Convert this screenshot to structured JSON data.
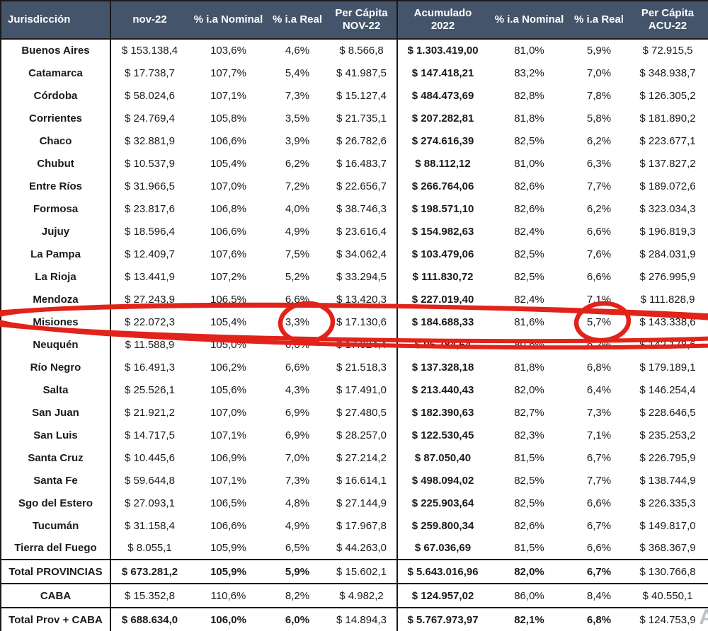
{
  "table": {
    "headers": [
      {
        "lines": [
          "Jurisdicción"
        ]
      },
      {
        "lines": [
          "nov-22"
        ]
      },
      {
        "lines": [
          "% i.a Nominal"
        ]
      },
      {
        "lines": [
          "% i.a Real"
        ]
      },
      {
        "lines": [
          "Per Cápita",
          "NOV-22"
        ]
      },
      {
        "lines": [
          "Acumulado",
          "2022"
        ]
      },
      {
        "lines": [
          "% i.a Nominal"
        ]
      },
      {
        "lines": [
          "% i.a Real"
        ]
      },
      {
        "lines": [
          "Per Cápita",
          "ACU-22"
        ]
      }
    ],
    "rows": [
      {
        "cells": [
          "Buenos Aires",
          "$ 153.138,4",
          "103,6%",
          "4,6%",
          "$ 8.566,8",
          "$ 1.303.419,00",
          "81,0%",
          "5,9%",
          "$ 72.915,5"
        ]
      },
      {
        "cells": [
          "Catamarca",
          "$ 17.738,7",
          "107,7%",
          "5,4%",
          "$ 41.987,5",
          "$ 147.418,21",
          "83,2%",
          "7,0%",
          "$ 348.938,7"
        ]
      },
      {
        "cells": [
          "Córdoba",
          "$ 58.024,6",
          "107,1%",
          "7,3%",
          "$ 15.127,4",
          "$ 484.473,69",
          "82,8%",
          "7,8%",
          "$ 126.305,2"
        ]
      },
      {
        "cells": [
          "Corrientes",
          "$ 24.769,4",
          "105,8%",
          "3,5%",
          "$ 21.735,1",
          "$ 207.282,81",
          "81,8%",
          "5,8%",
          "$ 181.890,2"
        ]
      },
      {
        "cells": [
          "Chaco",
          "$ 32.881,9",
          "106,6%",
          "3,9%",
          "$ 26.782,6",
          "$ 274.616,39",
          "82,5%",
          "6,2%",
          "$ 223.677,1"
        ]
      },
      {
        "cells": [
          "Chubut",
          "$ 10.537,9",
          "105,4%",
          "6,2%",
          "$ 16.483,7",
          "$ 88.112,12",
          "81,0%",
          "6,3%",
          "$ 137.827,2"
        ]
      },
      {
        "cells": [
          "Entre Ríos",
          "$ 31.966,5",
          "107,0%",
          "7,2%",
          "$ 22.656,7",
          "$ 266.764,06",
          "82,6%",
          "7,7%",
          "$ 189.072,6"
        ]
      },
      {
        "cells": [
          "Formosa",
          "$ 23.817,6",
          "106,8%",
          "4,0%",
          "$ 38.746,3",
          "$ 198.571,10",
          "82,6%",
          "6,2%",
          "$ 323.034,3"
        ]
      },
      {
        "cells": [
          "Jujuy",
          "$ 18.596,4",
          "106,6%",
          "4,9%",
          "$ 23.616,4",
          "$ 154.982,63",
          "82,4%",
          "6,6%",
          "$ 196.819,3"
        ]
      },
      {
        "cells": [
          "La Pampa",
          "$ 12.409,7",
          "107,6%",
          "7,5%",
          "$ 34.062,4",
          "$ 103.479,06",
          "82,5%",
          "7,6%",
          "$ 284.031,9"
        ]
      },
      {
        "cells": [
          "La Rioja",
          "$ 13.441,9",
          "107,2%",
          "5,2%",
          "$ 33.294,5",
          "$ 111.830,72",
          "82,5%",
          "6,6%",
          "$ 276.995,9"
        ]
      },
      {
        "cells": [
          "Mendoza",
          "$ 27.243,9",
          "106,5%",
          "6,6%",
          "$ 13.420,3",
          "$ 227.019,40",
          "82,4%",
          "7,1%",
          "$ 111.828,9"
        ]
      },
      {
        "cells": [
          "Misiones",
          "$ 22.072,3",
          "105,4%",
          "3,3%",
          "$ 17.130,6",
          "$ 184.688,33",
          "81,6%",
          "5,7%",
          "$ 143.338,6"
        ]
      },
      {
        "cells": [
          "Neuquén",
          "$ 11.588,9",
          "105,0%",
          "6,0%",
          "$ 17.024,4",
          "$ 96.784,64",
          "80,6%",
          "6,2%",
          "$ 142.178,6"
        ]
      },
      {
        "cells": [
          "Río Negro",
          "$ 16.491,3",
          "106,2%",
          "6,6%",
          "$ 21.518,3",
          "$ 137.328,18",
          "81,8%",
          "6,8%",
          "$ 179.189,1"
        ]
      },
      {
        "cells": [
          "Salta",
          "$ 25.526,1",
          "105,6%",
          "4,3%",
          "$ 17.491,0",
          "$ 213.440,43",
          "82,0%",
          "6,4%",
          "$ 146.254,4"
        ]
      },
      {
        "cells": [
          "San Juan",
          "$ 21.921,2",
          "107,0%",
          "6,9%",
          "$ 27.480,5",
          "$ 182.390,63",
          "82,7%",
          "7,3%",
          "$ 228.646,5"
        ]
      },
      {
        "cells": [
          "San Luis",
          "$ 14.717,5",
          "107,1%",
          "6,9%",
          "$ 28.257,0",
          "$ 122.530,45",
          "82,3%",
          "7,1%",
          "$ 235.253,2"
        ]
      },
      {
        "cells": [
          "Santa Cruz",
          "$ 10.445,6",
          "106,9%",
          "7,0%",
          "$ 27.214,2",
          "$ 87.050,40",
          "81,5%",
          "6,7%",
          "$ 226.795,9"
        ]
      },
      {
        "cells": [
          "Santa Fe",
          "$ 59.644,8",
          "107,1%",
          "7,3%",
          "$ 16.614,1",
          "$ 498.094,02",
          "82,5%",
          "7,7%",
          "$ 138.744,9"
        ]
      },
      {
        "cells": [
          "Sgo del Estero",
          "$ 27.093,1",
          "106,5%",
          "4,8%",
          "$ 27.144,9",
          "$ 225.903,64",
          "82,5%",
          "6,6%",
          "$ 226.335,3"
        ]
      },
      {
        "cells": [
          "Tucumán",
          "$ 31.158,4",
          "106,6%",
          "4,9%",
          "$ 17.967,8",
          "$ 259.800,34",
          "82,6%",
          "6,7%",
          "$ 149.817,0"
        ]
      },
      {
        "cells": [
          "Tierra del Fuego",
          "$ 8.055,1",
          "105,9%",
          "6,5%",
          "$ 44.263,0",
          "$ 67.036,69",
          "81,5%",
          "6,6%",
          "$ 368.367,9"
        ]
      }
    ],
    "total_rows": [
      {
        "kind": "total-strong",
        "cells": [
          "Total PROVINCIAS",
          "$ 673.281,2",
          "105,9%",
          "5,9%",
          "$ 15.602,1",
          "$ 5.643.016,96",
          "82,0%",
          "6,7%",
          "$ 130.766,8"
        ]
      },
      {
        "kind": "total-normal",
        "cells": [
          "CABA",
          "$ 15.352,8",
          "110,6%",
          "8,2%",
          "$ 4.982,2",
          "$ 124.957,02",
          "86,0%",
          "8,4%",
          "$ 40.550,1"
        ]
      },
      {
        "kind": "total-strong",
        "cells": [
          "Total Prov + CABA",
          "$ 688.634,0",
          "106,0%",
          "6,0%",
          "$ 14.894,3",
          "$ 5.767.973,97",
          "82,1%",
          "6,8%",
          "$ 124.753,9"
        ]
      }
    ]
  },
  "annotation": {
    "color": "#e2231a",
    "highlighted_row": "Misiones",
    "circled_values": [
      "3,3%",
      "5,7%"
    ]
  },
  "watermark": {
    "text": "A"
  },
  "colors": {
    "header_background": "#44546a",
    "header_text": "#ffffff",
    "body_text": "#1a1a1a",
    "border": "#1a1a1a"
  }
}
